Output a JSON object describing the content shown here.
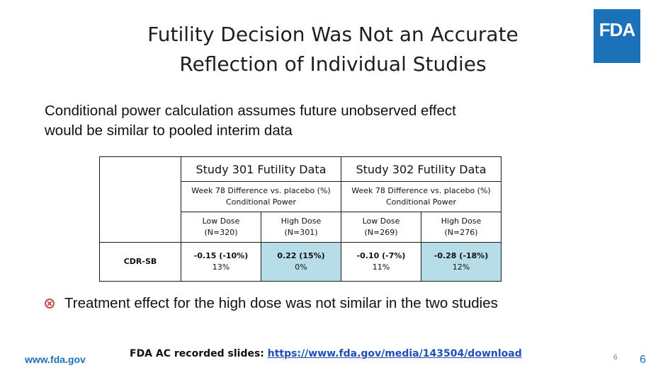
{
  "title_line1": "Futility Decision Was Not an Accurate",
  "title_line2": "Reflection of Individual Studies",
  "logo_text": "FDA",
  "subtitle_line1": "Conditional power calculation assumes future unobserved effect",
  "subtitle_line2": "would be similar to pooled interim data",
  "table": {
    "study301_header": "Study 301 Futility Data",
    "study302_header": "Study 302 Futility Data",
    "metric_line1": "Week 78 Difference vs. placebo (%)",
    "metric_line2": "Conditional Power",
    "arms": [
      {
        "dose": "Low Dose",
        "n": "(N=320)",
        "effect": "-0.15 (-10%)",
        "power": "13%",
        "highlight": false
      },
      {
        "dose": "High Dose",
        "n": "(N=301)",
        "effect": "0.22 (15%)",
        "power": "0%",
        "highlight": true
      },
      {
        "dose": "Low Dose",
        "n": "(N=269)",
        "effect": "-0.10 (-7%)",
        "power": "11%",
        "highlight": false
      },
      {
        "dose": "High Dose",
        "n": "(N=276)",
        "effect": "-0.28 (-18%)",
        "power": "12%",
        "highlight": true
      }
    ],
    "row_label": "CDR-SB",
    "highlight_color": "#b7dde8"
  },
  "bullet_icon": "circle-x-icon",
  "bullet_text": "Treatment effect for the high dose was not similar in the two studies",
  "footer_url": "www.fda.gov",
  "source_label": "FDA AC recorded slides: ",
  "source_link": "https://www.fda.gov/media/143504/download",
  "page_number_small": "6",
  "page_number": "6",
  "brand_color": "#1c72b8"
}
